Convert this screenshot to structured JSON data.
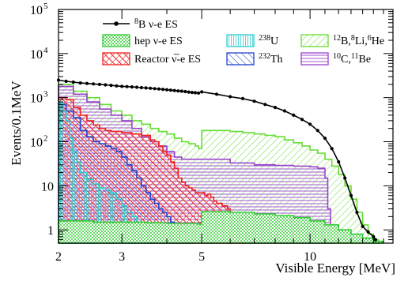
{
  "chart_data": {
    "type": "area",
    "xlabel": "Visible Energy [MeV]",
    "ylabel": "Events/0.1MeV",
    "x_scale": "log",
    "y_scale": "log",
    "xlim": [
      2,
      17
    ],
    "ylim": [
      0.5,
      100000
    ],
    "x_ticks": [
      {
        "value": 2,
        "label": "2"
      },
      {
        "value": 3,
        "label": "3"
      },
      {
        "value": 5,
        "label": "5"
      },
      {
        "value": 10,
        "label": "10"
      }
    ],
    "y_ticks": [
      {
        "value": 1,
        "label": "1"
      },
      {
        "value": 10,
        "label": "10"
      },
      {
        "value": 100,
        "label": "10",
        "sup": "2"
      },
      {
        "value": 1000,
        "label": "10",
        "sup": "3"
      },
      {
        "value": 10000,
        "label": "10",
        "sup": "4"
      },
      {
        "value": 100000,
        "label": "10",
        "sup": "5"
      }
    ],
    "legend": [
      {
        "key": "b8",
        "text": "B ν-e ES",
        "sup": "8",
        "symbol": "line-marker",
        "color": "#000000"
      },
      {
        "key": "hep",
        "text": "hep ν-e ES",
        "symbol": "dots",
        "color": "#33cc33"
      },
      {
        "key": "u238",
        "text": "U",
        "sup": "238",
        "symbol": "vertical-hatch",
        "color": "#33cccc"
      },
      {
        "key": "cosmo",
        "text": "B, Li, He",
        "sups": [
          "12",
          "8",
          "6"
        ],
        "symbol": "diagonal-hatch",
        "color": "#66dd33"
      },
      {
        "key": "reactor",
        "text": "Reactor ν̅-e ES",
        "symbol": "crosshatch",
        "color": "#ee2222"
      },
      {
        "key": "th232",
        "text": "Th",
        "sup": "232",
        "symbol": "back-hatch",
        "color": "#2244cc"
      },
      {
        "key": "c10be11",
        "text": "C, Be",
        "sups": [
          "10",
          "11"
        ],
        "symbol": "horizontal-hatch",
        "color": "#9944cc"
      }
    ],
    "series": [
      {
        "name": "8B ν-e ES",
        "style": "line-marker",
        "color": "#000000",
        "segments": [
          {
            "x": [
              2.0,
              2.1,
              2.2,
              2.3,
              2.4,
              2.5,
              2.6,
              2.7,
              2.8,
              2.9,
              3.0,
              3.1,
              3.2,
              3.3,
              3.4,
              3.5,
              3.6,
              3.7,
              3.8,
              3.9,
              4.0,
              4.1,
              4.2,
              4.3,
              4.4,
              4.5,
              4.6,
              4.7,
              4.8,
              4.9
            ],
            "y": [
              2500,
              2350,
              2250,
              2150,
              2100,
              2050,
              2000,
              1950,
              1900,
              1850,
              1800,
              1780,
              1750,
              1720,
              1690,
              1660,
              1630,
              1600,
              1570,
              1540,
              1510,
              1480,
              1450,
              1420,
              1400,
              1370,
              1340,
              1310,
              1290,
              1270
            ]
          },
          {
            "x": [
              5.0,
              5.5,
              6.0,
              6.5,
              7.0,
              7.5,
              8.0,
              8.5,
              9.0,
              9.5,
              10.0,
              10.5,
              11.0,
              11.5,
              12.0,
              12.5,
              13.0,
              13.5,
              14.0,
              14.5,
              15.0,
              15.2
            ],
            "y": [
              1350,
              1200,
              1050,
              950,
              830,
              700,
              600,
              500,
              400,
              320,
              250,
              180,
              120,
              70,
              35,
              15,
              6,
              2.5,
              1.2,
              0.9,
              0.7,
              0.6
            ]
          }
        ]
      },
      {
        "name": "12B, 8Li, 6He",
        "style": "diagonal-hatch",
        "color": "#66dd33",
        "x": [
          2.0,
          2.2,
          2.4,
          2.6,
          2.8,
          3.0,
          3.2,
          3.4,
          3.6,
          3.8,
          4.0,
          4.2,
          4.4,
          4.6,
          4.8,
          4.9,
          5.0,
          5.5,
          6.0,
          6.5,
          7.0,
          7.5,
          8.0,
          8.5,
          9.0,
          9.5,
          10.0,
          10.5,
          11.0,
          11.5,
          12.0,
          12.5,
          13.0,
          13.5,
          14.0,
          14.5,
          15.0
        ],
        "y": [
          2000,
          1400,
          1000,
          700,
          500,
          400,
          300,
          250,
          200,
          170,
          150,
          120,
          100,
          90,
          80,
          70,
          180,
          180,
          170,
          160,
          150,
          140,
          130,
          110,
          95,
          80,
          65,
          55,
          40,
          28,
          18,
          10,
          5,
          2.5,
          1.3,
          0.8,
          0.6
        ]
      },
      {
        "name": "10C, 11Be",
        "style": "horizontal-hatch",
        "color": "#9944cc",
        "x": [
          2.0,
          2.2,
          2.4,
          2.6,
          2.8,
          3.0,
          3.2,
          3.4,
          3.6,
          3.8,
          4.0,
          4.2,
          4.4,
          4.6,
          4.8,
          5.0,
          5.5,
          6.0,
          7.0,
          8.0,
          9.0,
          10.0,
          10.5,
          11.0,
          11.2,
          11.4
        ],
        "y": [
          1800,
          1200,
          800,
          550,
          400,
          300,
          200,
          130,
          100,
          80,
          60,
          45,
          40,
          40,
          40,
          40,
          40,
          33,
          30,
          29,
          28,
          27,
          25,
          15,
          3,
          0.6
        ]
      },
      {
        "name": "Reactor ν̅-e ES",
        "style": "crosshatch",
        "color": "#ee2222",
        "x": [
          2.0,
          2.1,
          2.2,
          2.3,
          2.4,
          2.5,
          2.6,
          2.7,
          2.8,
          2.9,
          3.0,
          3.1,
          3.2,
          3.3,
          3.4,
          3.5,
          3.6,
          3.7,
          3.8,
          3.9,
          4.0,
          4.1,
          4.2,
          4.3,
          4.4,
          4.5,
          4.6,
          4.7,
          4.8,
          4.9,
          5.0,
          5.1,
          5.2,
          5.3,
          5.4,
          5.5,
          5.6,
          5.7,
          5.8,
          5.9,
          6.0,
          6.1,
          6.2,
          6.3,
          6.4,
          6.5
        ],
        "y": [
          1000,
          900,
          600,
          400,
          300,
          240,
          200,
          180,
          170,
          170,
          160,
          160,
          150,
          150,
          140,
          140,
          110,
          100,
          80,
          60,
          50,
          35,
          25,
          15,
          12,
          10,
          9,
          8,
          7,
          7,
          7,
          6,
          6.5,
          5.5,
          4.5,
          4,
          4,
          3.5,
          3.5,
          3,
          2.5,
          2,
          2,
          1.6,
          1.4,
          1.3
        ]
      },
      {
        "name": "232Th",
        "style": "back-hatch",
        "color": "#2244cc",
        "x": [
          2.0,
          2.1,
          2.2,
          2.3,
          2.4,
          2.5,
          2.6,
          2.7,
          2.8,
          2.9,
          3.0,
          3.1,
          3.2,
          3.3,
          3.4,
          3.5,
          3.6,
          3.7,
          3.8,
          3.9,
          4.0,
          4.1,
          4.2,
          4.3,
          4.4,
          4.5
        ],
        "y": [
          700,
          500,
          350,
          180,
          130,
          100,
          90,
          80,
          70,
          60,
          45,
          30,
          22,
          15,
          10,
          7,
          5,
          4,
          3,
          2.5,
          2,
          1.5,
          1.2,
          1.1,
          1,
          0.9
        ]
      },
      {
        "name": "238U",
        "style": "vertical-hatch",
        "color": "#33cccc",
        "x": [
          2.0,
          2.05,
          2.1,
          2.15,
          2.2,
          2.25,
          2.3,
          2.4,
          2.5,
          2.6,
          2.7,
          2.8,
          2.9,
          3.0,
          3.1,
          3.2,
          3.3,
          3.4
        ],
        "y": [
          800,
          500,
          300,
          120,
          60,
          35,
          20,
          14,
          11,
          9,
          8,
          7,
          5,
          3.5,
          2.5,
          2,
          1.5,
          1.2
        ]
      },
      {
        "name": "hep ν-e ES",
        "style": "dots",
        "color": "#33cc33",
        "x": [
          2.0,
          2.5,
          3.0,
          3.5,
          4.0,
          4.5,
          4.9,
          5.0,
          6.0,
          7.0,
          8.0,
          9.0,
          10.0,
          11.0,
          12.0,
          13.0,
          14.0,
          15.0
        ],
        "y": [
          1.6,
          1.5,
          1.5,
          1.45,
          1.4,
          1.4,
          1.35,
          2.6,
          2.5,
          2.3,
          2.1,
          1.9,
          1.6,
          1.3,
          1.0,
          0.8,
          0.65,
          0.55
        ]
      }
    ]
  }
}
